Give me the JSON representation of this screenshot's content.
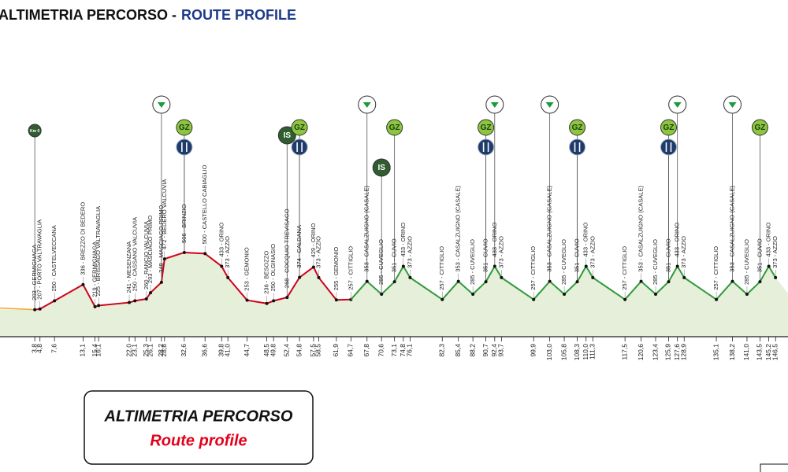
{
  "chart_data": {
    "type": "line",
    "title": "ALTIMETRIA PERCORSO -",
    "subtitle": "ROUTE PROFILE",
    "box_title": "ALTIMETRIA PERCORSO",
    "box_subtitle": "Route profile",
    "xlim": [
      -2.9,
      148.9
    ],
    "ylim": [
      60,
      560
    ],
    "area_color": "#e6efd9",
    "start_color": "#f5a623",
    "series": [
      {
        "color": "#d0021b",
        "x": [
          3.8,
          4.8,
          7.6,
          13.1,
          15.4,
          16.1,
          22.0,
          23.1,
          25.3,
          26.1,
          28.2,
          28.8,
          32.6,
          36.6,
          39.8,
          41.0,
          44.7,
          48.5,
          49.8,
          52.4,
          54.8,
          57.5,
          58.5,
          61.9,
          64.7
        ],
        "values": [
          203,
          207,
          250,
          336,
          219,
          225,
          241,
          250,
          260,
          293,
          348,
          472,
          506,
          500,
          433,
          373,
          253,
          236,
          250,
          268,
          374,
          429,
          373,
          255,
          257
        ],
        "value_labels": [
          "203 - GERMIGNAGA",
          "207 - PORTO VALTRAVAGLIA",
          "250 - CASTELVECCANA",
          "336 - BREZZO DI BEDERO",
          "219 - GERMIGNAGA",
          "225 - BRISSAGO VALTRAVAGLIA",
          "241 - MESENZANA",
          "250 - CASSANO VALCUVIA",
          "260 - RANCIO VALCUVIA",
          "293 - MASCIAGO PRIMO",
          "348 - MASCIAGO PRIMO",
          "472 - BEDERO VALCUVIA",
          "506 - BRINZIO",
          "500 - CASTELLO CABIAGLIO",
          "433 - ORINO",
          "373 - AZZIO",
          "253 - GEMONIO",
          "236 - BESOZZO",
          "250 - OLGINASIO",
          "268 - COCQUIO TREVISAGO",
          "374 - CALDANA",
          "429 - ORINO",
          "373 - AZZIO",
          "255 - GEMONIO",
          "257 - CITTIGLIO"
        ]
      },
      {
        "color": "#2e9b3a",
        "x": [
          67.8,
          70.6,
          73.1,
          74.8,
          76.1,
          82.3,
          85.4,
          88.2,
          90.7,
          92.4,
          93.7,
          99.9,
          103.0,
          105.8,
          108.3,
          110.0,
          111.3,
          117.5,
          120.6,
          123.4,
          125.9,
          127.6,
          128.9,
          135.1,
          138.2,
          141.0,
          143.5,
          145.2,
          146.5
        ],
        "values": [
          353,
          285,
          351,
          433,
          373,
          257,
          353,
          285,
          351,
          433,
          373,
          257,
          353,
          285,
          351,
          433,
          373,
          257,
          353,
          285,
          351,
          433,
          373,
          257,
          353,
          285,
          351,
          433,
          373
        ],
        "value_labels": [
          "353 - CASALZUIGNO (CASALE)",
          "285 - CUVEGLIO",
          "351 - CUVIO",
          "433 - ORINO",
          "373 - AZZIO",
          "257 - CITTIGLIO",
          "353 - CASALZUIGNO (CASALE)",
          "285 - CUVEGLIO",
          "351 - CUVIO",
          "433 - ORINO",
          "373 - AZZIO",
          "257 - CITTIGLIO",
          "353 - CASALZUIGNO (CASALE)",
          "285 - CUVEGLIO",
          "351 - CUVIO",
          "433 - ORINO",
          "373 - AZZIO",
          "257 - CITTIGLIO",
          "353 - CASALZUIGNO (CASALE)",
          "285 - CUVEGLIO",
          "351 - CUVIO",
          "433 - ORINO",
          "373 - AZZIO",
          "257 - CITTIGLIO",
          "353 - CASALZUIGNO (CASALE)",
          "285 - CUVEGLIO",
          "351 - CUVIO",
          "433 - ORINO",
          "373 - AZZIO"
        ]
      }
    ],
    "xticks": [
      {
        "value": 3.8,
        "label": "3,8"
      },
      {
        "value": 4.8,
        "label": "4,8"
      },
      {
        "value": 7.6,
        "label": "7,6"
      },
      {
        "value": 13.1,
        "label": "13,1"
      },
      {
        "value": 15.4,
        "label": "15,4"
      },
      {
        "value": 16.1,
        "label": "16,1"
      },
      {
        "value": 22.0,
        "label": "22,0"
      },
      {
        "value": 23.1,
        "label": "23,1"
      },
      {
        "value": 25.3,
        "label": "25,3"
      },
      {
        "value": 26.1,
        "label": "26,1"
      },
      {
        "value": 28.2,
        "label": "28,2"
      },
      {
        "value": 28.8,
        "label": "28,8"
      },
      {
        "value": 32.6,
        "label": "32,6"
      },
      {
        "value": 36.6,
        "label": "36,6"
      },
      {
        "value": 39.8,
        "label": "39,8"
      },
      {
        "value": 41.0,
        "label": "41,0"
      },
      {
        "value": 44.7,
        "label": "44,7"
      },
      {
        "value": 48.5,
        "label": "48,5"
      },
      {
        "value": 49.8,
        "label": "49,8"
      },
      {
        "value": 52.4,
        "label": "52,4"
      },
      {
        "value": 54.8,
        "label": "54,8"
      },
      {
        "value": 57.5,
        "label": "57,5"
      },
      {
        "value": 58.5,
        "label": "58,5"
      },
      {
        "value": 61.9,
        "label": "61,9"
      },
      {
        "value": 64.7,
        "label": "64,7"
      },
      {
        "value": 67.8,
        "label": "67,8"
      },
      {
        "value": 70.6,
        "label": "70,6"
      },
      {
        "value": 73.1,
        "label": "73,1"
      },
      {
        "value": 74.8,
        "label": "74,8"
      },
      {
        "value": 76.1,
        "label": "76,1"
      },
      {
        "value": 82.3,
        "label": "82,3"
      },
      {
        "value": 85.4,
        "label": "85,4"
      },
      {
        "value": 88.2,
        "label": "88,2"
      },
      {
        "value": 90.7,
        "label": "90,7"
      },
      {
        "value": 92.4,
        "label": "92,4"
      },
      {
        "value": 93.7,
        "label": "93,7"
      },
      {
        "value": 99.9,
        "label": "99,9"
      },
      {
        "value": 103.0,
        "label": "103,0"
      },
      {
        "value": 105.8,
        "label": "105,8"
      },
      {
        "value": 108.3,
        "label": "108,3"
      },
      {
        "value": 110.0,
        "label": "110,0"
      },
      {
        "value": 111.3,
        "label": "111,3"
      },
      {
        "value": 117.5,
        "label": "117,5"
      },
      {
        "value": 120.6,
        "label": "120,6"
      },
      {
        "value": 123.4,
        "label": "123,4"
      },
      {
        "value": 125.9,
        "label": "125,9"
      },
      {
        "value": 127.6,
        "label": "127,6"
      },
      {
        "value": 128.9,
        "label": "128,9"
      },
      {
        "value": 135.1,
        "label": "135,1"
      },
      {
        "value": 138.2,
        "label": "138,2"
      },
      {
        "value": 141.0,
        "label": "141,0"
      },
      {
        "value": 143.5,
        "label": "143,5"
      },
      {
        "value": 145.2,
        "label": "145,2"
      },
      {
        "value": 146.5,
        "label": "146,5"
      }
    ],
    "icons": [
      {
        "symbol": "km0",
        "label": "Km 0",
        "x": 3.8
      },
      {
        "symbol": "triangle",
        "x": 28.2
      },
      {
        "symbol": "gz",
        "label": "GZ",
        "x": 32.6
      },
      {
        "symbol": "fork",
        "x": 32.6
      },
      {
        "symbol": "is",
        "label": "IS",
        "x": 52.4
      },
      {
        "symbol": "gz",
        "label": "GZ",
        "x": 54.8
      },
      {
        "symbol": "fork",
        "x": 54.8
      },
      {
        "symbol": "triangle",
        "x": 67.8
      },
      {
        "symbol": "is",
        "label": "IS",
        "x": 70.6
      },
      {
        "symbol": "gz",
        "label": "GZ",
        "x": 73.1
      },
      {
        "symbol": "gz",
        "label": "GZ",
        "x": 90.7
      },
      {
        "symbol": "fork",
        "x": 90.7
      },
      {
        "symbol": "triangle",
        "x": 92.4
      },
      {
        "symbol": "triangle",
        "x": 103.0
      },
      {
        "symbol": "gz",
        "label": "GZ",
        "x": 108.3
      },
      {
        "symbol": "fork",
        "x": 108.3
      },
      {
        "symbol": "gz",
        "label": "GZ",
        "x": 125.9
      },
      {
        "symbol": "fork",
        "x": 125.9
      },
      {
        "symbol": "triangle",
        "x": 127.6
      },
      {
        "symbol": "triangle",
        "x": 138.2
      },
      {
        "symbol": "gz",
        "label": "GZ",
        "x": 143.5
      }
    ]
  }
}
